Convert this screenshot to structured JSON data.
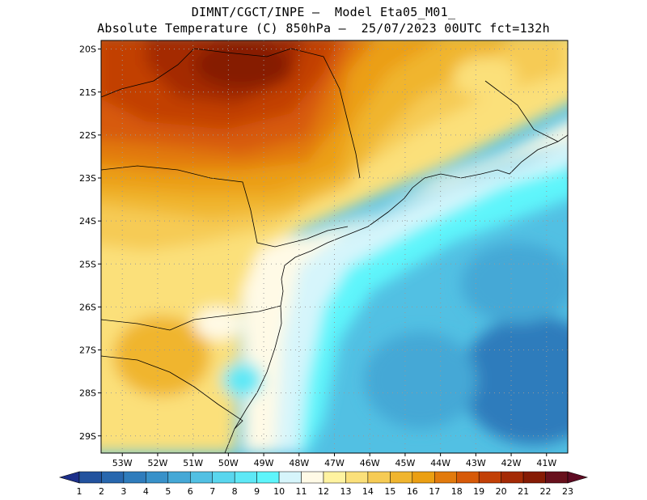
{
  "title_line1": "DIMNT/CGCT/INPE —  Model Eta05_M01_",
  "title_line2": "Absolute Temperature (C) 850hPa —  25/07/2023 00UTC fct=132h",
  "map": {
    "lat_labels": [
      "20S",
      "21S",
      "22S",
      "23S",
      "24S",
      "25S",
      "26S",
      "27S",
      "28S",
      "29S"
    ],
    "lat_values": [
      -20,
      -21,
      -22,
      -23,
      -24,
      -25,
      -26,
      -27,
      -28,
      -29
    ],
    "lon_labels": [
      "53W",
      "52W",
      "51W",
      "50W",
      "49W",
      "48W",
      "47W",
      "46W",
      "45W",
      "44W",
      "43W",
      "42W",
      "41W"
    ],
    "lon_values": [
      -53,
      -52,
      -51,
      -50,
      -49,
      -48,
      -47,
      -46,
      -45,
      -44,
      -43,
      -42,
      -41
    ],
    "lon_range": [
      -53.6,
      -40.4
    ],
    "lat_range": [
      -29.4,
      -19.8
    ]
  },
  "colorbar": {
    "labels": [
      "1",
      "2",
      "3",
      "4",
      "5",
      "6",
      "7",
      "8",
      "9",
      "10",
      "11",
      "12",
      "13",
      "14",
      "15",
      "16",
      "17",
      "18",
      "19",
      "20",
      "21",
      "22",
      "23"
    ],
    "colors": [
      "#1c3a8c",
      "#22529e",
      "#2867ae",
      "#2f7cbc",
      "#3891c9",
      "#45a8d6",
      "#52c0e3",
      "#59d6ee",
      "#5ee8f6",
      "#5ef5fb",
      "#d6f5fb",
      "#fffae6",
      "#fff3a0",
      "#fbe07a",
      "#f6cb55",
      "#f0b52f",
      "#eb9f12",
      "#e27a0c",
      "#d75a08",
      "#c24006",
      "#a42a05",
      "#861b04",
      "#68101c",
      "#520820"
    ],
    "under_color": "#1c2f8a",
    "over_color": "#5e0a22"
  }
}
